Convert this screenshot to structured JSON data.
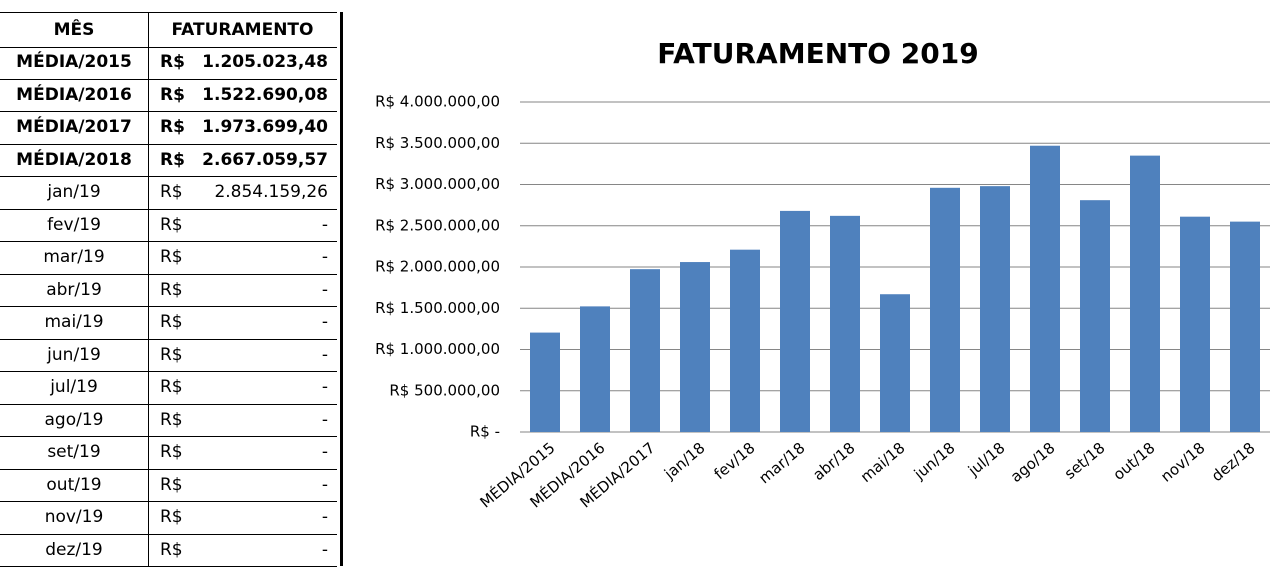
{
  "table": {
    "header": [
      "MÊS",
      "FATURAMENTO"
    ],
    "rows": [
      [
        "MÉDIA/2015",
        "R$",
        "1.205.023,48"
      ],
      [
        "MÉDIA/2016",
        "R$",
        "1.522.690,08"
      ],
      [
        "MÉDIA/2017",
        "R$",
        "1.973.699,40"
      ],
      [
        "MÉDIA/2018",
        "R$",
        "2.667.059,57"
      ],
      [
        "jan/19",
        "R$",
        "2.854.159,26"
      ],
      [
        "fev/19",
        "R$",
        "-"
      ],
      [
        "mar/19",
        "R$",
        "-"
      ],
      [
        "abr/19",
        "R$",
        "-"
      ],
      [
        "mai/19",
        "R$",
        "-"
      ],
      [
        "jun/19",
        "R$",
        "-"
      ],
      [
        "jul/19",
        "R$",
        "-"
      ],
      [
        "ago/19",
        "R$",
        "-"
      ],
      [
        "set/19",
        "R$",
        "-"
      ],
      [
        "out/19",
        "R$",
        "-"
      ],
      [
        "nov/19",
        "R$",
        "-"
      ],
      [
        "dez/19",
        "R$",
        "-"
      ]
    ]
  },
  "chart_data": {
    "type": "bar",
    "title": "FATURAMENTO 2019",
    "categories": [
      "MÉDIA/2015",
      "MÉDIA/2016",
      "MÉDIA/2017",
      "jan/18",
      "fev/18",
      "mar/18",
      "abr/18",
      "mai/18",
      "jun/18",
      "jul/18",
      "ago/18",
      "set/18",
      "out/18",
      "nov/18",
      "dez/18"
    ],
    "values": [
      1205023.48,
      1522690.08,
      1973699.4,
      2060000,
      2210000,
      2680000,
      2620000,
      1670000,
      2960000,
      2980000,
      3470000,
      2810000,
      3350000,
      2610000,
      2550000
    ],
    "color": "#4f81bd",
    "ylim": [
      0,
      4000000
    ],
    "yticks": [
      {
        "value": 0,
        "label": "R$ -"
      },
      {
        "value": 500000,
        "label": "R$ 500.000,00"
      },
      {
        "value": 1000000,
        "label": "R$ 1.000.000,00"
      },
      {
        "value": 1500000,
        "label": "R$ 1.500.000,00"
      },
      {
        "value": 2000000,
        "label": "R$ 2.000.000,00"
      },
      {
        "value": 2500000,
        "label": "R$ 2.500.000,00"
      },
      {
        "value": 3000000,
        "label": "R$ 3.000.000,00"
      },
      {
        "value": 3500000,
        "label": "R$ 3.500.000,00"
      },
      {
        "value": 4000000,
        "label": "R$ 4.000.000,00"
      }
    ],
    "grid": true
  }
}
